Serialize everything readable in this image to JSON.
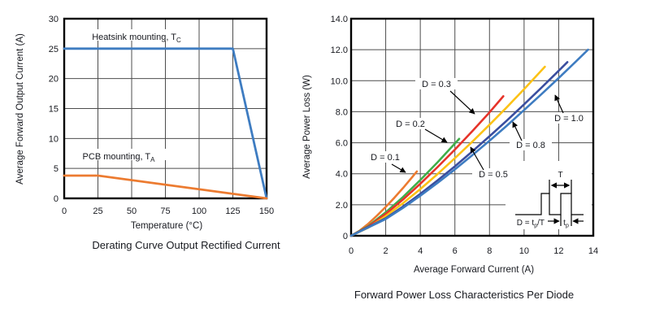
{
  "chart_data": [
    {
      "id": "derating",
      "type": "line",
      "caption": "Derating Curve Output Rectified Current",
      "xlabel": "Temperature (°C)",
      "ylabel": "Average Forward Output Current (A)",
      "x_range": [
        0,
        150
      ],
      "y_range": [
        0,
        30
      ],
      "x_ticks": [
        "0",
        "25",
        "50",
        "75",
        "100",
        "125",
        "150"
      ],
      "y_ticks": [
        "0",
        "5",
        "10",
        "15",
        "20",
        "25",
        "30"
      ],
      "grid": true,
      "legend_position": "inline-labels",
      "series": [
        {
          "name": "heatsink-mounting",
          "label": "Heatsink mounting, T",
          "label_sub": "C",
          "color": "#3E7CC1",
          "points": [
            [
              0,
              25
            ],
            [
              125,
              25
            ],
            [
              150,
              0
            ]
          ]
        },
        {
          "name": "pcb-mounting",
          "label": "PCB mounting, T",
          "label_sub": "A",
          "color": "#EC7B30",
          "points": [
            [
              0,
              3.8
            ],
            [
              25,
              3.8
            ],
            [
              150,
              0
            ]
          ]
        }
      ]
    },
    {
      "id": "forward-power-loss",
      "type": "line",
      "caption": "Forward Power Loss Characteristics Per Diode",
      "xlabel": "Average Forward Current (A)",
      "ylabel": "Average Power Loss (W)",
      "x_range": [
        0,
        14
      ],
      "y_range": [
        0,
        14
      ],
      "x_ticks": [
        "0",
        "2",
        "4",
        "6",
        "8",
        "10",
        "12",
        "14"
      ],
      "y_ticks": [
        "0",
        "2.0",
        "4.0",
        "6.0",
        "8.0",
        "10.0",
        "12.0",
        "14.0"
      ],
      "grid": true,
      "legend_position": "inline-labels",
      "series": [
        {
          "name": "duty-0.1",
          "label": "D = 0.1",
          "color": "#EC7B30",
          "points": [
            [
              0,
              0
            ],
            [
              0.5,
              0.33
            ],
            [
              1,
              0.78
            ],
            [
              1.5,
              1.3
            ],
            [
              2,
              1.86
            ],
            [
              2.5,
              2.45
            ],
            [
              3,
              3.08
            ],
            [
              3.5,
              3.74
            ],
            [
              3.8,
              4.15
            ]
          ]
        },
        {
          "name": "duty-0.2",
          "label": "D = 0.2",
          "color": "#3FAE49",
          "points": [
            [
              0,
              0
            ],
            [
              1,
              0.63
            ],
            [
              2,
              1.51
            ],
            [
              3,
              2.5
            ],
            [
              4,
              3.59
            ],
            [
              5,
              4.74
            ],
            [
              6,
              5.95
            ],
            [
              6.25,
              6.25
            ]
          ]
        },
        {
          "name": "duty-0.3",
          "label": "D = 0.3",
          "color": "#E63329",
          "points": [
            [
              0,
              0
            ],
            [
              1,
              0.59
            ],
            [
              2,
              1.41
            ],
            [
              3,
              2.34
            ],
            [
              4,
              3.35
            ],
            [
              5,
              4.43
            ],
            [
              6,
              5.56
            ],
            [
              7,
              6.74
            ],
            [
              8,
              7.96
            ],
            [
              8.8,
              9.0
            ]
          ]
        },
        {
          "name": "duty-0.5",
          "label": "D = 0.5",
          "color": "#FCC216",
          "points": [
            [
              0,
              0
            ],
            [
              1,
              0.53
            ],
            [
              2,
              1.27
            ],
            [
              3,
              2.1
            ],
            [
              4,
              3.01
            ],
            [
              5,
              3.98
            ],
            [
              6,
              5.0
            ],
            [
              7,
              6.06
            ],
            [
              8,
              7.16
            ],
            [
              9,
              8.29
            ],
            [
              10,
              9.46
            ],
            [
              11.2,
              10.9
            ]
          ]
        },
        {
          "name": "duty-0.8",
          "label": "D = 0.8",
          "color": "#3A4E9F",
          "points": [
            [
              0,
              0
            ],
            [
              2,
              1.13
            ],
            [
              3,
              1.88
            ],
            [
              4,
              2.7
            ],
            [
              5,
              3.57
            ],
            [
              6,
              4.48
            ],
            [
              7,
              5.43
            ],
            [
              8,
              6.42
            ],
            [
              9,
              7.43
            ],
            [
              10,
              8.48
            ],
            [
              11,
              9.55
            ],
            [
              12,
              10.64
            ],
            [
              12.5,
              11.2
            ]
          ]
        },
        {
          "name": "duty-1.0",
          "label": "D = 1.0",
          "color": "#3E7CC1",
          "points": [
            [
              0,
              0
            ],
            [
              2,
              1.08
            ],
            [
              3,
              1.8
            ],
            [
              4,
              2.58
            ],
            [
              5,
              3.41
            ],
            [
              6,
              4.28
            ],
            [
              7,
              5.19
            ],
            [
              8,
              6.13
            ],
            [
              9,
              7.1
            ],
            [
              10,
              8.11
            ],
            [
              11,
              9.13
            ],
            [
              12,
              10.17
            ],
            [
              13,
              11.24
            ],
            [
              13.7,
              12.0
            ]
          ]
        }
      ],
      "inset": {
        "period_label": "T",
        "pulse_label": "t",
        "pulse_sub": "p",
        "formula_prefix": "D = t",
        "formula_sub": "p",
        "formula_suffix": "/T"
      }
    }
  ]
}
